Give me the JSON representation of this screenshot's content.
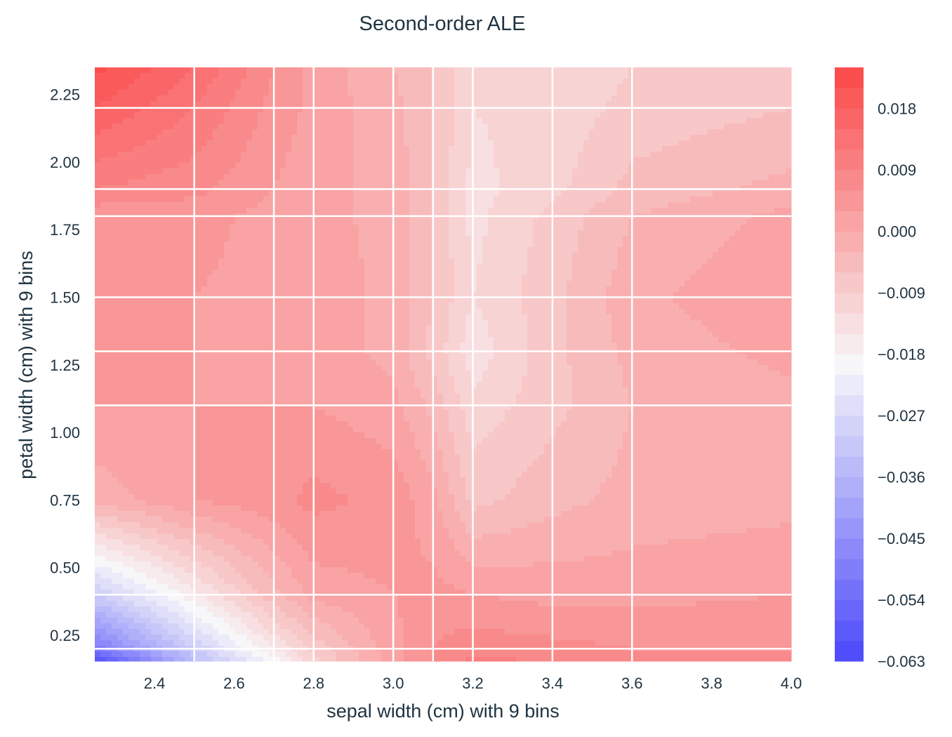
{
  "chart_data": {
    "type": "heatmap",
    "subtype": "filled-contour",
    "title": "Second-order ALE",
    "xlabel": "sepal width (cm) with 9 bins",
    "ylabel": "petal width (cm) with 9 bins",
    "xlim": [
      2.25,
      4.0
    ],
    "ylim": [
      0.154,
      2.35
    ],
    "xticks": [
      2.4,
      2.6,
      2.8,
      3.0,
      3.2,
      3.4,
      3.6,
      3.8,
      4.0
    ],
    "xtick_labels": [
      "2.4",
      "2.6",
      "2.8",
      "3.0",
      "3.2",
      "3.4",
      "3.6",
      "3.8",
      "4.0"
    ],
    "yticks": [
      0.25,
      0.5,
      0.75,
      1.0,
      1.25,
      1.5,
      1.75,
      2.0,
      2.25
    ],
    "ytick_labels": [
      "0.25",
      "0.50",
      "0.75",
      "1.00",
      "1.25",
      "1.50",
      "1.75",
      "2.00",
      "2.25"
    ],
    "x_bin_edges": [
      2.5,
      2.7,
      2.8,
      3.0,
      3.1,
      3.2,
      3.4,
      3.6
    ],
    "y_bin_edges": [
      0.2,
      0.4,
      1.1,
      1.3,
      1.5,
      1.8,
      1.9,
      2.2
    ],
    "grid_x": [
      2.25,
      2.5,
      2.7,
      2.8,
      3.0,
      3.1,
      3.2,
      3.4,
      3.6,
      4.0
    ],
    "grid_y": [
      0.15,
      0.2,
      0.4,
      0.75,
      1.1,
      1.3,
      1.5,
      1.8,
      1.9,
      2.2,
      2.35
    ],
    "values": [
      [
        -0.062,
        -0.035,
        -0.02,
        -0.01,
        0.002,
        0.006,
        0.01,
        0.009,
        0.006,
        0.006
      ],
      [
        -0.05,
        -0.03,
        -0.015,
        -0.008,
        0.002,
        0.006,
        0.008,
        0.007,
        0.006,
        0.006
      ],
      [
        -0.03,
        -0.016,
        -0.004,
        0.001,
        0.003,
        0.004,
        0.003,
        0.002,
        0.002,
        0.003
      ],
      [
        -0.002,
        0.003,
        0.005,
        0.007,
        0.005,
        0.001,
        -0.007,
        -0.004,
        -0.002,
        -0.001
      ],
      [
        0.003,
        0.003,
        0.003,
        0.003,
        0.001,
        -0.004,
        -0.011,
        -0.007,
        -0.003,
        -0.001
      ],
      [
        0.003,
        0.003,
        0.002,
        0.002,
        -0.001,
        -0.007,
        -0.014,
        -0.007,
        -0.002,
        0.001
      ],
      [
        0.004,
        0.003,
        0.002,
        0.002,
        -0.001,
        -0.006,
        -0.012,
        -0.007,
        -0.001,
        0.003
      ],
      [
        0.004,
        0.004,
        0.002,
        0.001,
        -0.001,
        -0.006,
        -0.013,
        -0.008,
        -0.003,
        0.001
      ],
      [
        0.009,
        0.007,
        0.003,
        0.001,
        -0.001,
        -0.006,
        -0.013,
        -0.01,
        -0.005,
        -0.002
      ],
      [
        0.018,
        0.012,
        0.005,
        0.002,
        -0.002,
        -0.006,
        -0.012,
        -0.011,
        -0.008,
        -0.006
      ],
      [
        0.022,
        0.015,
        0.006,
        0.002,
        -0.003,
        -0.006,
        -0.012,
        -0.012,
        -0.009,
        -0.008
      ]
    ],
    "colorbar": {
      "min": -0.063,
      "max": 0.024,
      "step": 0.003,
      "tick_values": [
        0.018,
        0.009,
        0.0,
        -0.009,
        -0.018,
        -0.027,
        -0.036,
        -0.045,
        -0.054,
        -0.063
      ],
      "tick_labels": [
        "0.018",
        "0.009",
        "0.000",
        "−0.009",
        "−0.018",
        "−0.027",
        "−0.036",
        "−0.045",
        "−0.054",
        "−0.063"
      ],
      "high_color": "#fb4848",
      "mid_color": "#f7f7f9",
      "low_color": "#4a48fb"
    }
  }
}
